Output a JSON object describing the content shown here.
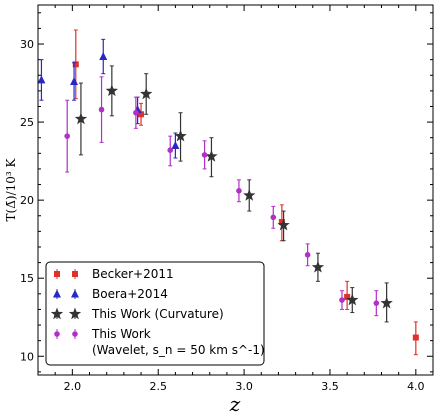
{
  "chart_data": {
    "type": "scatter",
    "xlabel": "z",
    "ylabel": "T(Δ̄)/10³ K",
    "xlim": [
      1.8,
      4.1
    ],
    "ylim": [
      8.8,
      32.5
    ],
    "xticks": [
      "2.0",
      "2.5",
      "3.0",
      "3.5",
      "4.0"
    ],
    "yticks": [
      "10",
      "15",
      "20",
      "25",
      "30"
    ],
    "legend_position": "lower-left",
    "series": [
      {
        "name": "Becker+2011",
        "color": "#e0302a",
        "marker": "square",
        "points": [
          {
            "x": 2.02,
            "y": 28.7,
            "lo": 26.5,
            "hi": 30.9
          },
          {
            "x": 2.4,
            "y": 25.5,
            "lo": 24.8,
            "hi": 26.2
          },
          {
            "x": 3.22,
            "y": 18.6,
            "lo": 17.4,
            "hi": 19.7
          },
          {
            "x": 3.6,
            "y": 13.8,
            "lo": 13.0,
            "hi": 14.8
          },
          {
            "x": 4.0,
            "y": 11.2,
            "lo": 10.1,
            "hi": 12.2
          }
        ]
      },
      {
        "name": "Boera+2014",
        "color": "#2828c8",
        "marker": "triangle",
        "points": [
          {
            "x": 1.82,
            "y": 27.7,
            "lo": 26.4,
            "hi": 29.0
          },
          {
            "x": 2.01,
            "y": 27.6,
            "lo": 26.4,
            "hi": 28.8
          },
          {
            "x": 2.18,
            "y": 29.2,
            "lo": 28.1,
            "hi": 30.3
          },
          {
            "x": 2.38,
            "y": 25.8,
            "lo": 24.9,
            "hi": 26.6
          },
          {
            "x": 2.6,
            "y": 23.5,
            "lo": 22.7,
            "hi": 24.3
          }
        ]
      },
      {
        "name": "This Work (Curvature)",
        "color": "#333333",
        "marker": "star",
        "points": [
          {
            "x": 2.05,
            "y": 25.2,
            "lo": 22.9,
            "hi": 27.5
          },
          {
            "x": 2.23,
            "y": 27.0,
            "lo": 25.4,
            "hi": 28.6
          },
          {
            "x": 2.43,
            "y": 26.8,
            "lo": 25.5,
            "hi": 28.1
          },
          {
            "x": 2.63,
            "y": 24.1,
            "lo": 22.5,
            "hi": 25.6
          },
          {
            "x": 2.81,
            "y": 22.8,
            "lo": 21.5,
            "hi": 24.0
          },
          {
            "x": 3.03,
            "y": 20.3,
            "lo": 19.3,
            "hi": 21.3
          },
          {
            "x": 3.23,
            "y": 18.4,
            "lo": 17.4,
            "hi": 19.3
          },
          {
            "x": 3.43,
            "y": 15.7,
            "lo": 14.8,
            "hi": 16.6
          },
          {
            "x": 3.63,
            "y": 13.6,
            "lo": 12.8,
            "hi": 14.4
          },
          {
            "x": 3.83,
            "y": 13.4,
            "lo": 12.2,
            "hi": 14.7
          }
        ]
      },
      {
        "name": "This Work\n(Wavelet, s_n = 50 km s^-1)",
        "color": "#b030c8",
        "marker": "circle",
        "points": [
          {
            "x": 1.97,
            "y": 24.1,
            "lo": 21.8,
            "hi": 26.4
          },
          {
            "x": 2.17,
            "y": 25.8,
            "lo": 23.7,
            "hi": 27.9
          },
          {
            "x": 2.37,
            "y": 25.6,
            "lo": 24.6,
            "hi": 26.6
          },
          {
            "x": 2.57,
            "y": 23.2,
            "lo": 22.2,
            "hi": 24.1
          },
          {
            "x": 2.77,
            "y": 22.9,
            "lo": 22.0,
            "hi": 23.8
          },
          {
            "x": 2.97,
            "y": 20.6,
            "lo": 19.9,
            "hi": 21.3
          },
          {
            "x": 3.17,
            "y": 18.9,
            "lo": 18.2,
            "hi": 19.6
          },
          {
            "x": 3.37,
            "y": 16.5,
            "lo": 15.8,
            "hi": 17.2
          },
          {
            "x": 3.57,
            "y": 13.6,
            "lo": 13.0,
            "hi": 14.2
          },
          {
            "x": 3.77,
            "y": 13.4,
            "lo": 12.6,
            "hi": 14.2
          }
        ]
      }
    ],
    "legend": [
      {
        "label": "Becker+2011"
      },
      {
        "label": "Boera+2014"
      },
      {
        "label": "This Work (Curvature)"
      },
      {
        "label": "This Work",
        "label2": "(Wavelet, s_n = 50 km s^-1)"
      }
    ]
  }
}
